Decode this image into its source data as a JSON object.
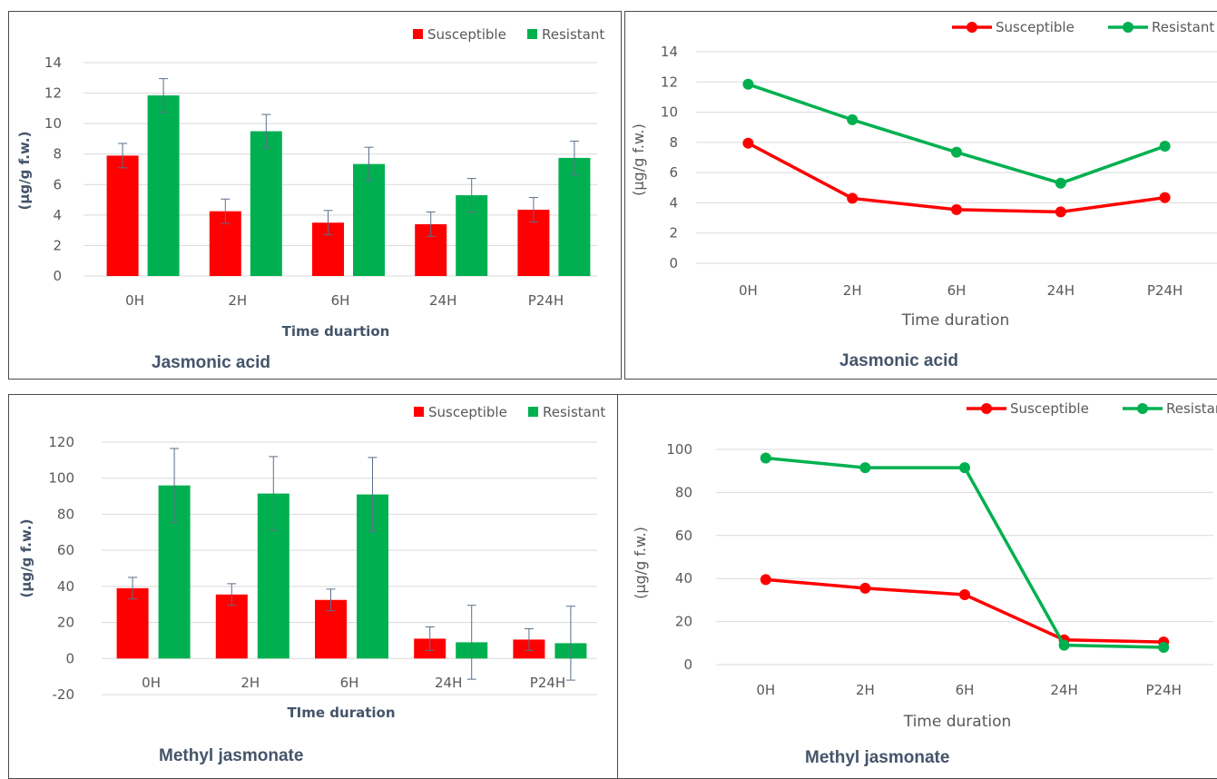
{
  "colors": {
    "susceptible": "#ff0000",
    "resistant": "#00b050",
    "grid": "#d9d9d9",
    "errorbar": "#5b6f8a"
  },
  "chart_data": [
    {
      "type": "bar",
      "caption": "Jasmonic acid",
      "xlabel": "Time duartion",
      "ylabel": "(µg/g f.w.)",
      "categories": [
        "0H",
        "2H",
        "6H",
        "24H",
        "P24H"
      ],
      "ylim": [
        0,
        14
      ],
      "yticks": [
        "0",
        "2",
        "4",
        "6",
        "8",
        "10",
        "12",
        "14"
      ],
      "grid": true,
      "legend_position": "top-right",
      "series": [
        {
          "name": "Susceptible",
          "color": "#ff0000",
          "values": [
            7.9,
            4.25,
            3.5,
            3.4,
            4.35
          ],
          "errors": [
            0.8,
            0.8,
            0.8,
            0.8,
            0.8
          ]
        },
        {
          "name": "Resistant",
          "color": "#00b050",
          "values": [
            11.85,
            9.5,
            7.35,
            5.3,
            7.75
          ],
          "errors": [
            1.1,
            1.1,
            1.1,
            1.1,
            1.1
          ]
        }
      ]
    },
    {
      "type": "line",
      "caption": "Jasmonic acid",
      "xlabel": "Time duration",
      "ylabel": "(µg/g f.w.)",
      "categories": [
        "0H",
        "2H",
        "6H",
        "24H",
        "P24H"
      ],
      "ylim": [
        0,
        14
      ],
      "yticks": [
        "0",
        "2",
        "4",
        "6",
        "8",
        "10",
        "12",
        "14"
      ],
      "grid": true,
      "legend_position": "top-right",
      "series": [
        {
          "name": "Susceptible",
          "color": "#ff0000",
          "values": [
            7.95,
            4.3,
            3.55,
            3.4,
            4.35
          ]
        },
        {
          "name": "Resistant",
          "color": "#00b050",
          "values": [
            11.85,
            9.5,
            7.35,
            5.3,
            7.75
          ]
        }
      ]
    },
    {
      "type": "bar",
      "caption": "Methyl jasmonate",
      "xlabel": "TIme duration",
      "ylabel": "(µg/g f.w.)",
      "categories": [
        "0H",
        "2H",
        "6H",
        "24H",
        "P24H"
      ],
      "ylim": [
        -20,
        120
      ],
      "yticks": [
        "-20",
        "0",
        "20",
        "40",
        "60",
        "80",
        "100",
        "120"
      ],
      "grid": true,
      "legend_position": "top-right",
      "series": [
        {
          "name": "Susceptible",
          "color": "#ff0000",
          "values": [
            39,
            35.5,
            32.5,
            11,
            10.5
          ],
          "errors": [
            6,
            6,
            6,
            6.5,
            6
          ]
        },
        {
          "name": "Resistant",
          "color": "#00b050",
          "values": [
            96,
            91.5,
            91,
            9,
            8.5
          ],
          "errors": [
            20.5,
            20.5,
            20.5,
            20.5,
            20.5
          ]
        }
      ]
    },
    {
      "type": "line",
      "caption": "Methyl jasmonate",
      "xlabel": "Time duration",
      "ylabel": "(µg/g f.w.)",
      "categories": [
        "0H",
        "2H",
        "6H",
        "24H",
        "P24H"
      ],
      "ylim": [
        0,
        100
      ],
      "yticks": [
        "0",
        "20",
        "40",
        "60",
        "80",
        "100"
      ],
      "grid": true,
      "legend_position": "top-right",
      "series": [
        {
          "name": "Susceptible",
          "color": "#ff0000",
          "values": [
            39.5,
            35.5,
            32.5,
            11.5,
            10.5
          ]
        },
        {
          "name": "Resistant",
          "color": "#00b050",
          "values": [
            96,
            91.5,
            91.5,
            9,
            8
          ]
        }
      ]
    }
  ]
}
